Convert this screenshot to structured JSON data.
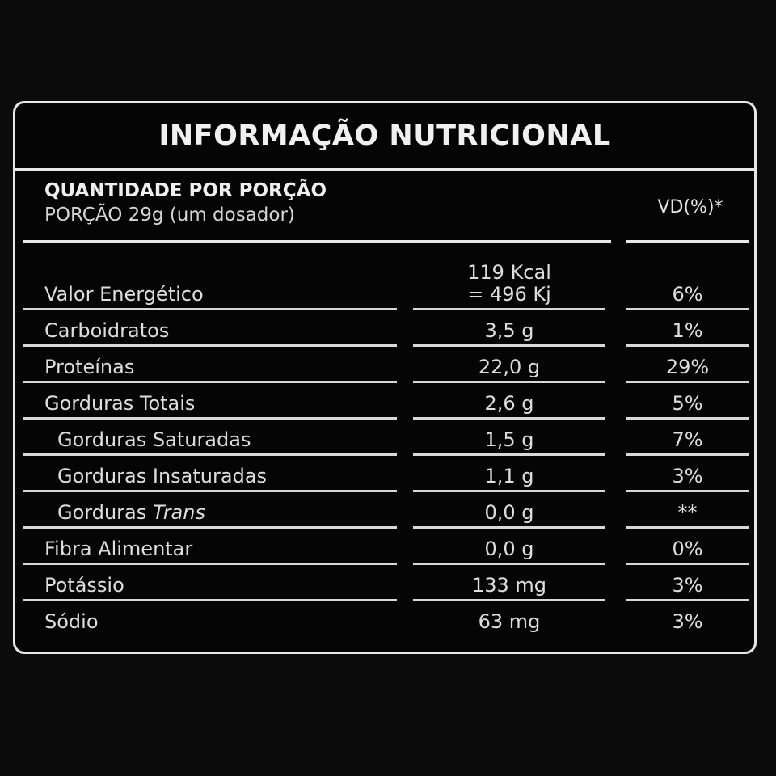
{
  "title": "INFORMAÇÃO NUTRICIONAL",
  "portion": {
    "header": "QUANTIDADE POR PORÇÃO",
    "serving": "PORÇÃO 29g (um dosador)",
    "vd_header": "VD(%)*"
  },
  "rows": [
    {
      "name": "Valor Energético",
      "amount_line1": "119 Kcal",
      "amount_line2": "= 496 Kj",
      "vd": "6%"
    },
    {
      "name": "Carboidratos",
      "amount": "3,5 g",
      "vd": "1%"
    },
    {
      "name": "Proteínas",
      "amount": "22,0 g",
      "vd": "29%"
    },
    {
      "name": "Gorduras Totais",
      "amount": "2,6 g",
      "vd": "5%"
    },
    {
      "name": "Gorduras Saturadas",
      "amount": "1,5 g",
      "vd": "7%"
    },
    {
      "name": "Gorduras Insaturadas",
      "amount": "1,1 g",
      "vd": "3%"
    },
    {
      "name_prefix": "Gorduras",
      "name_emph": "Trans",
      "amount": "0,0 g",
      "vd": "**"
    },
    {
      "name": "Fibra Alimentar",
      "amount": "0,0 g",
      "vd": "0%"
    },
    {
      "name": "Potássio",
      "amount": "133 mg",
      "vd": "3%"
    },
    {
      "name": "Sódio",
      "amount": "63 mg",
      "vd": "3%"
    }
  ]
}
